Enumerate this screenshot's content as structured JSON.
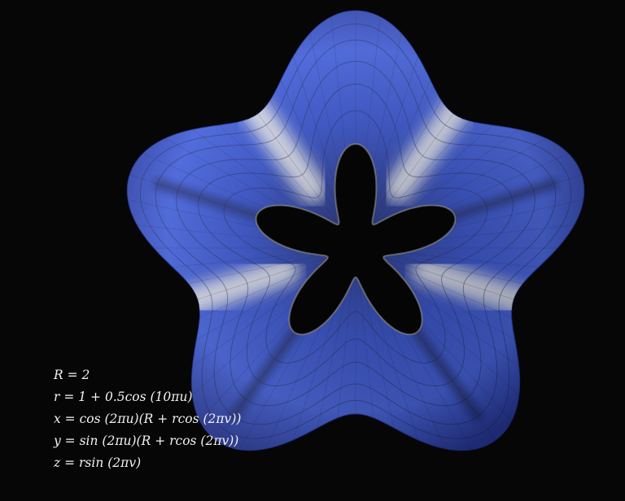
{
  "scene": {
    "name": "torus-with-flower-cross-section",
    "surface_color": "#2f4fd6",
    "highlight_color": "#f1f0ea",
    "background_color": "#060607",
    "lobes": 5
  },
  "equations": [
    "R = 2",
    "r = 1 + 0.5cos (10πu)",
    "x = cos (2πu)(R + rcos (2πv))",
    "y = sin (2πu)(R + rcos (2πv))",
    "z = rsin (2πv)"
  ]
}
